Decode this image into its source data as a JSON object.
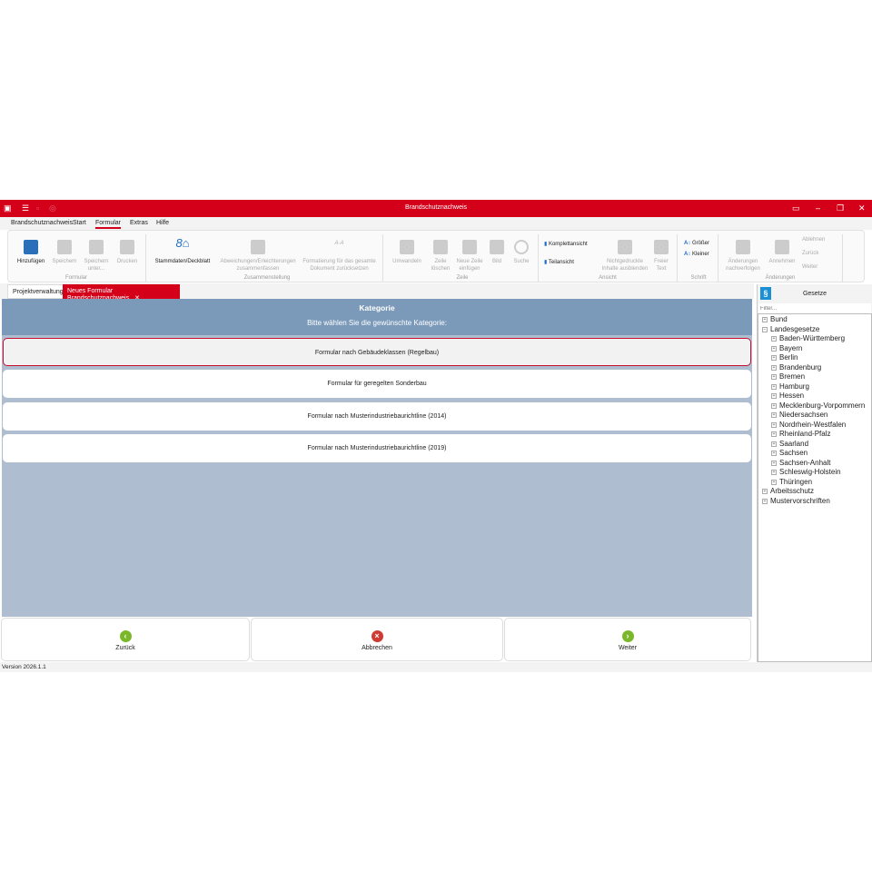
{
  "window": {
    "title": "Brandschutznachweis"
  },
  "menu": [
    "Brandschutznachweis",
    "Start",
    "Formular",
    "Extras",
    "Hilfe"
  ],
  "ribbon": {
    "formular": {
      "label": "Formular",
      "items": [
        "Hinzufügen",
        "Speichern",
        "Speichern unter...",
        "Drucken"
      ]
    },
    "zusammenstellung": {
      "label": "Zusammenstellung",
      "items": [
        "Stammdaten/Deckblatt",
        "Abweichungen/Erleichterungen zusammenfassen",
        "Formatierung für das gesamte Dokument zurücksetzen"
      ]
    },
    "zeile": {
      "label": "Zeile",
      "items": [
        "Umwandeln",
        "Zeile löschen",
        "Neue Zeile einfügen",
        "Bild",
        "Suche"
      ]
    },
    "ansicht": {
      "label": "Ansicht",
      "items": [
        "Komplettansicht",
        "Teilansicht",
        "Nichtgedruckte Inhalte ausblenden",
        "Freier Text"
      ]
    },
    "schrift": {
      "label": "Schrift",
      "items": [
        "Größer",
        "Kleiner"
      ]
    },
    "aenderungen": {
      "label": "Änderungen",
      "items": [
        "Änderungen nachverfolgen",
        "Annehmen",
        "Ablehnen",
        "Zurück",
        "Weiter"
      ]
    }
  },
  "tabs": [
    "Projektverwaltung",
    "Neues Formular Brandschutznachweis"
  ],
  "main": {
    "title": "Kategorie",
    "subtitle": "Bitte wählen Sie die gewünschte Kategorie:",
    "options": [
      "Formular nach Gebäudeklassen (Regelbau)",
      "Formular für geregelten Sonderbau",
      "Formular nach Musterindustriebaurichtline (2014)",
      "Formular nach Musterindustriebaurichtline (2019)"
    ]
  },
  "buttons": {
    "back": "Zurück",
    "cancel": "Abbrechen",
    "next": "Weiter"
  },
  "status": "Version 2026.1.1",
  "side": {
    "title": "Gesetze",
    "filter_placeholder": "Filter...",
    "tree": [
      {
        "label": "Bund",
        "level": 0,
        "sign": "+"
      },
      {
        "label": "Landesgesetze",
        "level": 0,
        "sign": "−"
      },
      {
        "label": "Baden-Württemberg",
        "level": 1,
        "sign": "+"
      },
      {
        "label": "Bayern",
        "level": 1,
        "sign": "+"
      },
      {
        "label": "Berlin",
        "level": 1,
        "sign": "+"
      },
      {
        "label": "Brandenburg",
        "level": 1,
        "sign": "+"
      },
      {
        "label": "Bremen",
        "level": 1,
        "sign": "+"
      },
      {
        "label": "Hamburg",
        "level": 1,
        "sign": "+"
      },
      {
        "label": "Hessen",
        "level": 1,
        "sign": "+"
      },
      {
        "label": "Mecklenburg-Vorpommern",
        "level": 1,
        "sign": "+"
      },
      {
        "label": "Niedersachsen",
        "level": 1,
        "sign": "+"
      },
      {
        "label": "Nordrhein-Westfalen",
        "level": 1,
        "sign": "+"
      },
      {
        "label": "Rheinland-Pfalz",
        "level": 1,
        "sign": "+"
      },
      {
        "label": "Saarland",
        "level": 1,
        "sign": "+"
      },
      {
        "label": "Sachsen",
        "level": 1,
        "sign": "+"
      },
      {
        "label": "Sachsen-Anhalt",
        "level": 1,
        "sign": "+"
      },
      {
        "label": "Schleswig-Holstein",
        "level": 1,
        "sign": "+"
      },
      {
        "label": "Thüringen",
        "level": 1,
        "sign": "+"
      },
      {
        "label": "Arbeitsschutz",
        "level": 0,
        "sign": "+"
      },
      {
        "label": "Mustervorschriften",
        "level": 0,
        "sign": "+"
      }
    ]
  },
  "colors": {
    "brand": "#d4001a",
    "header": "#7b9aba",
    "content": "#aebdd0"
  }
}
